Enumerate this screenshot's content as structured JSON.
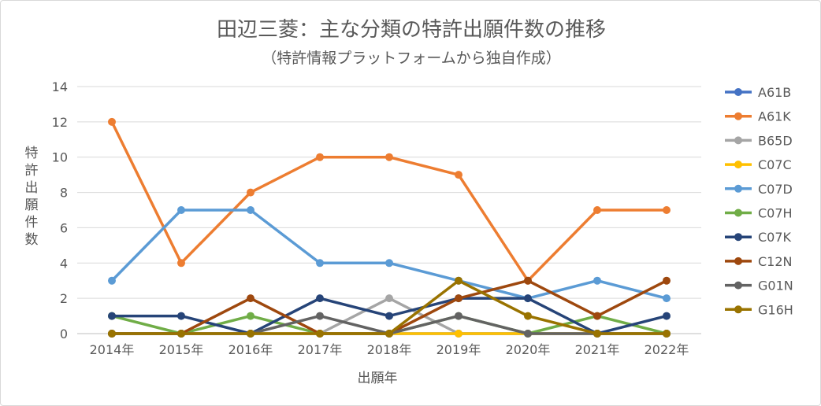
{
  "chart_data": {
    "type": "line",
    "title": "田辺三菱：主な分類の特許出願件数の推移",
    "subtitle": "（特許情報プラットフォームから独自作成）",
    "xlabel": "出願年",
    "ylabel": "特許出願件数",
    "categories": [
      "2014年",
      "2015年",
      "2016年",
      "2017年",
      "2018年",
      "2019年",
      "2020年",
      "2021年",
      "2022年"
    ],
    "ylim": [
      0,
      14
    ],
    "yticks": [
      0,
      2,
      4,
      6,
      8,
      10,
      12,
      14
    ],
    "grid": true,
    "legend_position": "right",
    "series": [
      {
        "name": "A61B",
        "color": "#4472c4",
        "values": [
          0,
          0,
          0,
          0,
          0,
          0,
          0,
          0,
          0
        ]
      },
      {
        "name": "A61K",
        "color": "#ed7d31",
        "values": [
          12,
          4,
          8,
          10,
          10,
          9,
          3,
          7,
          7
        ]
      },
      {
        "name": "B65D",
        "color": "#a5a5a5",
        "values": [
          0,
          0,
          0,
          0,
          2,
          0,
          0,
          0,
          0
        ]
      },
      {
        "name": "C07C",
        "color": "#ffc000",
        "values": [
          0,
          0,
          0,
          0,
          0,
          0,
          0,
          0,
          0
        ]
      },
      {
        "name": "C07D",
        "color": "#5b9bd5",
        "values": [
          3,
          7,
          7,
          4,
          4,
          3,
          2,
          3,
          2
        ]
      },
      {
        "name": "C07H",
        "color": "#70ad47",
        "values": [
          1,
          0,
          1,
          0,
          0,
          1,
          0,
          1,
          0
        ]
      },
      {
        "name": "C07K",
        "color": "#264478",
        "values": [
          1,
          1,
          0,
          2,
          1,
          2,
          2,
          0,
          1
        ]
      },
      {
        "name": "C12N",
        "color": "#9e480e",
        "values": [
          0,
          0,
          2,
          0,
          0,
          2,
          3,
          1,
          3
        ]
      },
      {
        "name": "G01N",
        "color": "#636363",
        "values": [
          0,
          0,
          0,
          1,
          0,
          1,
          0,
          0,
          0
        ]
      },
      {
        "name": "G16H",
        "color": "#997300",
        "values": [
          0,
          0,
          0,
          0,
          0,
          3,
          1,
          0,
          0
        ]
      }
    ]
  }
}
